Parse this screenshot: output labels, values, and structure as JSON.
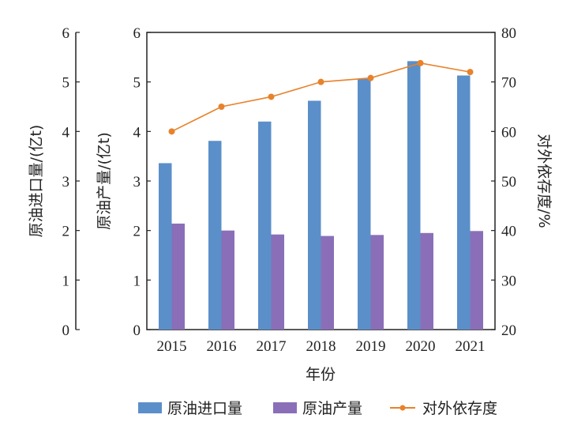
{
  "chart_data": {
    "type": "bar",
    "title": "",
    "xlabel": "年份",
    "categories": [
      "2015",
      "2016",
      "2017",
      "2018",
      "2019",
      "2020",
      "2021"
    ],
    "series": [
      {
        "name": "原油进口量",
        "type": "bar",
        "axis": "left",
        "color": "#5b8fc9",
        "values": [
          3.36,
          3.81,
          4.2,
          4.62,
          5.06,
          5.42,
          5.13
        ]
      },
      {
        "name": "原油产量",
        "type": "bar",
        "axis": "left",
        "color": "#8a6fb8",
        "values": [
          2.14,
          2.0,
          1.92,
          1.89,
          1.91,
          1.95,
          1.99
        ]
      },
      {
        "name": "对外依存度",
        "type": "line",
        "axis": "right",
        "color": "#e8822a",
        "values": [
          60.0,
          65.0,
          67.0,
          70.0,
          70.8,
          73.8,
          72.0
        ]
      }
    ],
    "axes": {
      "left_outer": {
        "label": "原油进口量/(亿t)",
        "range": [
          0,
          6
        ],
        "ticks": [
          "0",
          "1",
          "2",
          "3",
          "4",
          "5",
          "6"
        ]
      },
      "left_inner": {
        "label": "原油产量/(亿t)",
        "range": [
          0,
          6
        ],
        "ticks": [
          "0",
          "1",
          "2",
          "3",
          "4",
          "5",
          "6"
        ]
      },
      "right": {
        "label": "对外依存度/%",
        "range": [
          20,
          80
        ],
        "ticks": [
          "20",
          "30",
          "40",
          "50",
          "60",
          "70",
          "80"
        ]
      }
    },
    "grid": false,
    "legend": {
      "placement": "bottom",
      "entries": [
        "原油进口量",
        "原油产量",
        "对外依存度"
      ]
    }
  }
}
